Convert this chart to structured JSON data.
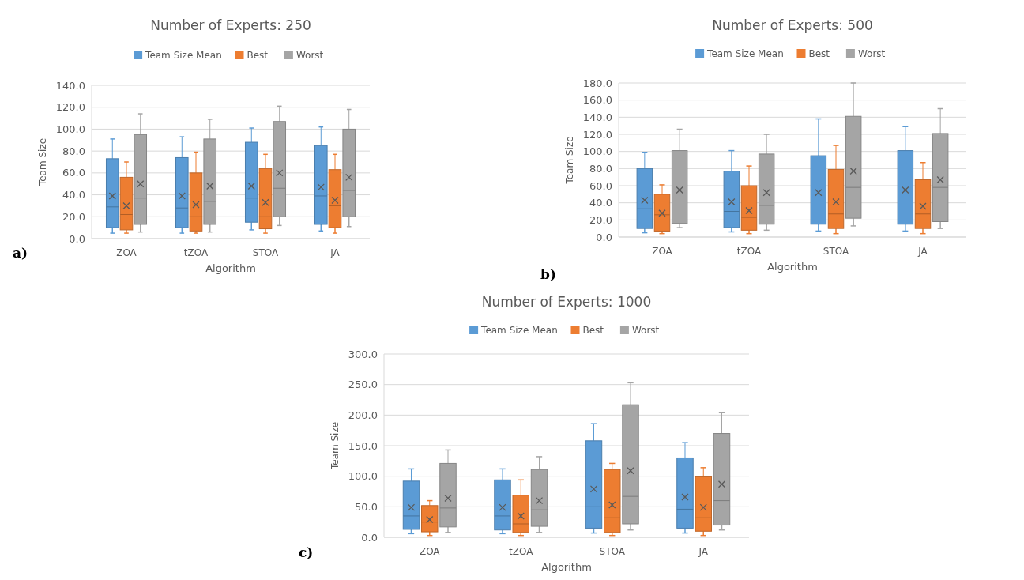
{
  "chart_data": [
    {
      "type": "box",
      "title": "Number of Experts: 250",
      "xlabel": "Algorithm",
      "ylabel": "Team Size",
      "categories": [
        "ZOA",
        "tZOA",
        "STOA",
        "JA"
      ],
      "ylim": [
        0,
        140
      ],
      "yticks": [
        {
          "value": 0,
          "label": "0.0"
        },
        {
          "value": 20,
          "label": "20.0"
        },
        {
          "value": 40,
          "label": "40.0"
        },
        {
          "value": 60,
          "label": "60.0"
        },
        {
          "value": 80,
          "label": "80.0"
        },
        {
          "value": 100,
          "label": "100.0"
        },
        {
          "value": 120,
          "label": "120.0"
        },
        {
          "value": 140,
          "label": "140.0"
        }
      ],
      "grid": "y",
      "legend": "top",
      "annotations": [
        "a)"
      ],
      "series": [
        {
          "name": "Team Size Mean",
          "color": "#5b9bd5",
          "boxes": [
            {
              "low": 5,
              "q1": 10,
              "median": 29,
              "q3": 73,
              "high": 91,
              "mean": 39
            },
            {
              "low": 5,
              "q1": 10,
              "median": 28,
              "q3": 74,
              "high": 93,
              "mean": 39
            },
            {
              "low": 8,
              "q1": 15,
              "median": 37,
              "q3": 88,
              "high": 101,
              "mean": 48
            },
            {
              "low": 7,
              "q1": 13,
              "median": 39,
              "q3": 85,
              "high": 102,
              "mean": 47
            }
          ]
        },
        {
          "name": "Best",
          "color": "#ed7d31",
          "boxes": [
            {
              "low": 5,
              "q1": 8,
              "median": 22,
              "q3": 56,
              "high": 70,
              "mean": 30
            },
            {
              "low": 5,
              "q1": 7,
              "median": 20,
              "q3": 60,
              "high": 79,
              "mean": 31
            },
            {
              "low": 5,
              "q1": 9,
              "median": 20,
              "q3": 64,
              "high": 77,
              "mean": 33
            },
            {
              "low": 5,
              "q1": 10,
              "median": 30,
              "q3": 63,
              "high": 77,
              "mean": 35
            }
          ]
        },
        {
          "name": "Worst",
          "color": "#a5a5a5",
          "boxes": [
            {
              "low": 6,
              "q1": 13,
              "median": 37,
              "q3": 95,
              "high": 114,
              "mean": 50
            },
            {
              "low": 6,
              "q1": 13,
              "median": 34,
              "q3": 91,
              "high": 109,
              "mean": 48
            },
            {
              "low": 12,
              "q1": 20,
              "median": 46,
              "q3": 107,
              "high": 121,
              "mean": 60
            },
            {
              "low": 11,
              "q1": 20,
              "median": 44,
              "q3": 100,
              "high": 118,
              "mean": 56
            }
          ]
        }
      ]
    },
    {
      "type": "box",
      "title": "Number of Experts: 500",
      "xlabel": "Algorithm",
      "ylabel": "Team Size",
      "categories": [
        "ZOA",
        "tZOA",
        "STOA",
        "JA"
      ],
      "ylim": [
        0,
        180
      ],
      "yticks": [
        {
          "value": 0,
          "label": "0.0"
        },
        {
          "value": 20,
          "label": "20.0"
        },
        {
          "value": 40,
          "label": "40.0"
        },
        {
          "value": 60,
          "label": "60.0"
        },
        {
          "value": 80,
          "label": "80.0"
        },
        {
          "value": 100,
          "label": "100.0"
        },
        {
          "value": 120,
          "label": "120.0"
        },
        {
          "value": 140,
          "label": "140.0"
        },
        {
          "value": 160,
          "label": "160.0"
        },
        {
          "value": 180,
          "label": "180.0"
        }
      ],
      "grid": "y",
      "legend": "top",
      "annotations": [
        "b)"
      ],
      "series": [
        {
          "name": "Team Size Mean",
          "color": "#5b9bd5",
          "boxes": [
            {
              "low": 5,
              "q1": 10,
              "median": 33,
              "q3": 80,
              "high": 99,
              "mean": 43
            },
            {
              "low": 6,
              "q1": 11,
              "median": 30,
              "q3": 77,
              "high": 101,
              "mean": 41
            },
            {
              "low": 7,
              "q1": 15,
              "median": 42,
              "q3": 95,
              "high": 138,
              "mean": 52
            },
            {
              "low": 7,
              "q1": 15,
              "median": 42,
              "q3": 101,
              "high": 129,
              "mean": 55
            }
          ]
        },
        {
          "name": "Best",
          "color": "#ed7d31",
          "boxes": [
            {
              "low": 4,
              "q1": 7,
              "median": 26,
              "q3": 50,
              "high": 61,
              "mean": 28
            },
            {
              "low": 4,
              "q1": 8,
              "median": 23,
              "q3": 60,
              "high": 83,
              "mean": 31
            },
            {
              "low": 4,
              "q1": 10,
              "median": 27,
              "q3": 79,
              "high": 107,
              "mean": 41
            },
            {
              "low": 4,
              "q1": 10,
              "median": 27,
              "q3": 67,
              "high": 87,
              "mean": 36
            }
          ]
        },
        {
          "name": "Worst",
          "color": "#a5a5a5",
          "boxes": [
            {
              "low": 11,
              "q1": 16,
              "median": 42,
              "q3": 101,
              "high": 126,
              "mean": 55
            },
            {
              "low": 8,
              "q1": 15,
              "median": 37,
              "q3": 97,
              "high": 120,
              "mean": 52
            },
            {
              "low": 13,
              "q1": 22,
              "median": 58,
              "q3": 141,
              "high": 180,
              "mean": 77
            },
            {
              "low": 10,
              "q1": 18,
              "median": 58,
              "q3": 121,
              "high": 150,
              "mean": 67
            }
          ]
        }
      ]
    },
    {
      "type": "box",
      "title": "Number of Experts: 1000",
      "xlabel": "Algorithm",
      "ylabel": "Team Size",
      "categories": [
        "ZOA",
        "tZOA",
        "STOA",
        "JA"
      ],
      "ylim": [
        0,
        300
      ],
      "yticks": [
        {
          "value": 0,
          "label": "0.0"
        },
        {
          "value": 50,
          "label": "50.0"
        },
        {
          "value": 100,
          "label": "100.0"
        },
        {
          "value": 150,
          "label": "150.0"
        },
        {
          "value": 200,
          "label": "200.0"
        },
        {
          "value": 250,
          "label": "250.0"
        },
        {
          "value": 300,
          "label": "300.0"
        }
      ],
      "grid": "y",
      "legend": "top",
      "annotations": [
        "c)"
      ],
      "series": [
        {
          "name": "Team Size Mean",
          "color": "#5b9bd5",
          "boxes": [
            {
              "low": 6,
              "q1": 13,
              "median": 35,
              "q3": 92,
              "high": 112,
              "mean": 49
            },
            {
              "low": 6,
              "q1": 12,
              "median": 35,
              "q3": 94,
              "high": 112,
              "mean": 49
            },
            {
              "low": 7,
              "q1": 15,
              "median": 50,
              "q3": 158,
              "high": 186,
              "mean": 79
            },
            {
              "low": 7,
              "q1": 15,
              "median": 46,
              "q3": 130,
              "high": 155,
              "mean": 66
            }
          ]
        },
        {
          "name": "Best",
          "color": "#ed7d31",
          "boxes": [
            {
              "low": 3,
              "q1": 9,
              "median": 25,
              "q3": 52,
              "high": 60,
              "mean": 29
            },
            {
              "low": 3,
              "q1": 8,
              "median": 22,
              "q3": 69,
              "high": 94,
              "mean": 35
            },
            {
              "low": 3,
              "q1": 8,
              "median": 32,
              "q3": 111,
              "high": 121,
              "mean": 53
            },
            {
              "low": 3,
              "q1": 10,
              "median": 32,
              "q3": 99,
              "high": 114,
              "mean": 49
            }
          ]
        },
        {
          "name": "Worst",
          "color": "#a5a5a5",
          "boxes": [
            {
              "low": 8,
              "q1": 17,
              "median": 48,
              "q3": 121,
              "high": 143,
              "mean": 64
            },
            {
              "low": 8,
              "q1": 18,
              "median": 45,
              "q3": 111,
              "high": 132,
              "mean": 60
            },
            {
              "low": 12,
              "q1": 22,
              "median": 67,
              "q3": 217,
              "high": 253,
              "mean": 109
            },
            {
              "low": 12,
              "q1": 20,
              "median": 60,
              "q3": 170,
              "high": 204,
              "mean": 87
            }
          ]
        }
      ]
    }
  ]
}
